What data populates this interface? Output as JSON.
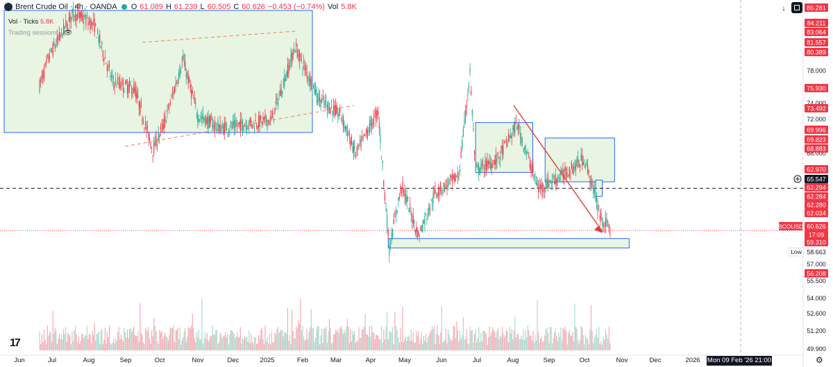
{
  "header": {
    "title": "Brent Crude Oil · 4h · OANDA",
    "o_label": "O",
    "o": "61.089",
    "h_label": "H",
    "h": "61.239",
    "l_label": "L",
    "l": "60.505",
    "c_label": "C",
    "c": "60.626",
    "change": "−0.453 (−0.74%)",
    "vol_label": "Vol",
    "vol": "5.8K",
    "sub_label": "Vol · Ticks",
    "sub_value": "5.8K",
    "sessions": "Trading sessions"
  },
  "colors": {
    "up": "#22ab94",
    "down": "#f23645",
    "zone_fill": "#e8f5e2",
    "zone_stroke": "#2962ff",
    "trend_dashed": "#f07a5a",
    "arrow": "#e53935",
    "price_badge": "#f23645"
  },
  "icons": [
    "download-icon",
    "fullscreen-icon",
    "settings-icon",
    "plus-icon",
    "eye-off-icon",
    "tradingview-logo-icon"
  ],
  "datetime": "Mon 09 Feb '26   21:00",
  "chart_data": {
    "type": "candlestick",
    "title": "Brent Crude Oil · 4h · OANDA",
    "x_ticks": [
      "Jun",
      "Jul",
      "Aug",
      "Sep",
      "Oct",
      "Nov",
      "Dec",
      "2025",
      "Feb",
      "Mar",
      "Apr",
      "May",
      "Jun",
      "Jul",
      "Aug",
      "Sep",
      "Oct",
      "Nov",
      "Dec",
      "2026",
      "Feb"
    ],
    "y_ticks": [
      "78.000",
      "74.000",
      "72.000",
      "68.000",
      "57.000",
      "55.500",
      "54.000",
      "52.600",
      "51.200",
      "49.900"
    ],
    "price_labels": [
      {
        "value": "86.281",
        "style": "red"
      },
      {
        "value": "84.211",
        "style": "red"
      },
      {
        "value": "83.064",
        "style": "red"
      },
      {
        "value": "81.557",
        "style": "red"
      },
      {
        "value": "80.389",
        "style": "red"
      },
      {
        "value": "75.930",
        "style": "red"
      },
      {
        "value": "73.492",
        "style": "red"
      },
      {
        "value": "69.996",
        "style": "red"
      },
      {
        "value": "69.823",
        "style": "red"
      },
      {
        "value": "68.883",
        "style": "red"
      },
      {
        "value": "62.970",
        "style": "red"
      },
      {
        "value": "65.547",
        "style": "dark"
      },
      {
        "value": "62.294",
        "style": "red"
      },
      {
        "value": "62.284",
        "style": "red"
      },
      {
        "value": "62.280",
        "style": "red"
      },
      {
        "value": "62.034",
        "style": "red"
      },
      {
        "value": "60.626",
        "style": "red"
      },
      {
        "value": "17:09",
        "style": "red"
      },
      {
        "value": "59.310",
        "style": "red"
      },
      {
        "value": "58.663",
        "style": "plain"
      },
      {
        "value": "56.208",
        "style": "red"
      }
    ],
    "symbol_tag": "BCOUSD",
    "low_tag": "Low",
    "last_price": 60.626,
    "crosshair_price": 65.547,
    "series_path": [
      {
        "t": "2024-06-01",
        "v": 77.5
      },
      {
        "t": "2024-06-10",
        "v": 81
      },
      {
        "t": "2024-07-01",
        "v": 86
      },
      {
        "t": "2024-07-20",
        "v": 84.5
      },
      {
        "t": "2024-08-05",
        "v": 78
      },
      {
        "t": "2024-08-25",
        "v": 77
      },
      {
        "t": "2024-09-10",
        "v": 70
      },
      {
        "t": "2024-09-20",
        "v": 73
      },
      {
        "t": "2024-10-07",
        "v": 80.5
      },
      {
        "t": "2024-10-20",
        "v": 74
      },
      {
        "t": "2024-11-10",
        "v": 72.5
      },
      {
        "t": "2024-12-01",
        "v": 73
      },
      {
        "t": "2024-12-25",
        "v": 73.5
      },
      {
        "t": "2025-01-15",
        "v": 82
      },
      {
        "t": "2025-02-05",
        "v": 76
      },
      {
        "t": "2025-02-25",
        "v": 74
      },
      {
        "t": "2025-03-10",
        "v": 69.5
      },
      {
        "t": "2025-03-30",
        "v": 74.5
      },
      {
        "t": "2025-04-09",
        "v": 58.5
      },
      {
        "t": "2025-04-20",
        "v": 66
      },
      {
        "t": "2025-05-05",
        "v": 60
      },
      {
        "t": "2025-05-20",
        "v": 65
      },
      {
        "t": "2025-06-10",
        "v": 67
      },
      {
        "t": "2025-06-20",
        "v": 79
      },
      {
        "t": "2025-06-25",
        "v": 67.5
      },
      {
        "t": "2025-07-15",
        "v": 69
      },
      {
        "t": "2025-08-01",
        "v": 73
      },
      {
        "t": "2025-08-20",
        "v": 65.5
      },
      {
        "t": "2025-09-10",
        "v": 67
      },
      {
        "t": "2025-09-30",
        "v": 69
      },
      {
        "t": "2025-10-10",
        "v": 64.5
      },
      {
        "t": "2025-10-15",
        "v": 62
      },
      {
        "t": "2025-10-24",
        "v": 60.6
      }
    ]
  }
}
